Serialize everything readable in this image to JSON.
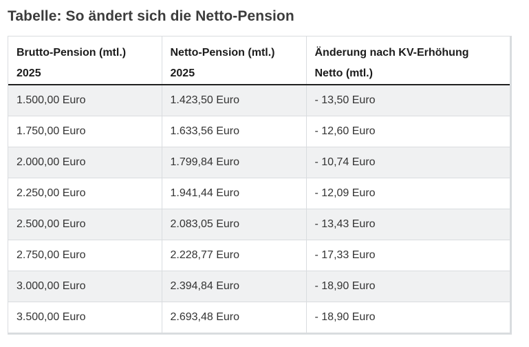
{
  "page": {
    "title": "Tabelle: So ändert sich die Netto-Pension"
  },
  "chart_data": {
    "type": "table",
    "title": "Tabelle: So ändert sich die Netto-Pension",
    "columns": [
      {
        "line1": "Brutto-Pension (mtl.)",
        "line2": "2025",
        "label": "Brutto-Pension (mtl.) 2025"
      },
      {
        "line1": "Netto-Pension (mtl.)",
        "line2": "2025",
        "label": "Netto-Pension (mtl.) 2025"
      },
      {
        "line1": "Änderung nach KV-Erhöhung",
        "line2": "Netto (mtl.)",
        "label": "Änderung nach KV-Erhöhung Netto (mtl.)"
      }
    ],
    "rows": [
      [
        "1.500,00 Euro",
        "1.423,50 Euro",
        "- 13,50 Euro"
      ],
      [
        "1.750,00 Euro",
        "1.633,56 Euro",
        "- 12,60 Euro"
      ],
      [
        "2.000,00 Euro",
        "1.799,84 Euro",
        "- 10,74 Euro"
      ],
      [
        "2.250,00 Euro",
        "1.941,44 Euro",
        "- 12,09 Euro"
      ],
      [
        "2.500,00 Euro",
        "2.083,05 Euro",
        "- 13,43 Euro"
      ],
      [
        "2.750,00 Euro",
        "2.228,77 Euro",
        "- 17,33 Euro"
      ],
      [
        "3.000,00 Euro",
        "2.394,84 Euro",
        "- 18,90 Euro"
      ],
      [
        "3.500,00 Euro",
        "2.693,48 Euro",
        "- 18,90 Euro"
      ]
    ],
    "layout": {
      "zebra_striping": true,
      "first_data_row_shaded": true,
      "header_lines": 2
    }
  },
  "colors": {
    "title_text": "#3c3c3c",
    "header_text": "#1b1b1b",
    "cell_text": "#333333",
    "row_alt_bg": "#f0f1f2",
    "row_bg": "#ffffff",
    "grid_border": "#d9dcdf",
    "header_underline": "#1f1f1f",
    "page_bg": "#ffffff"
  }
}
